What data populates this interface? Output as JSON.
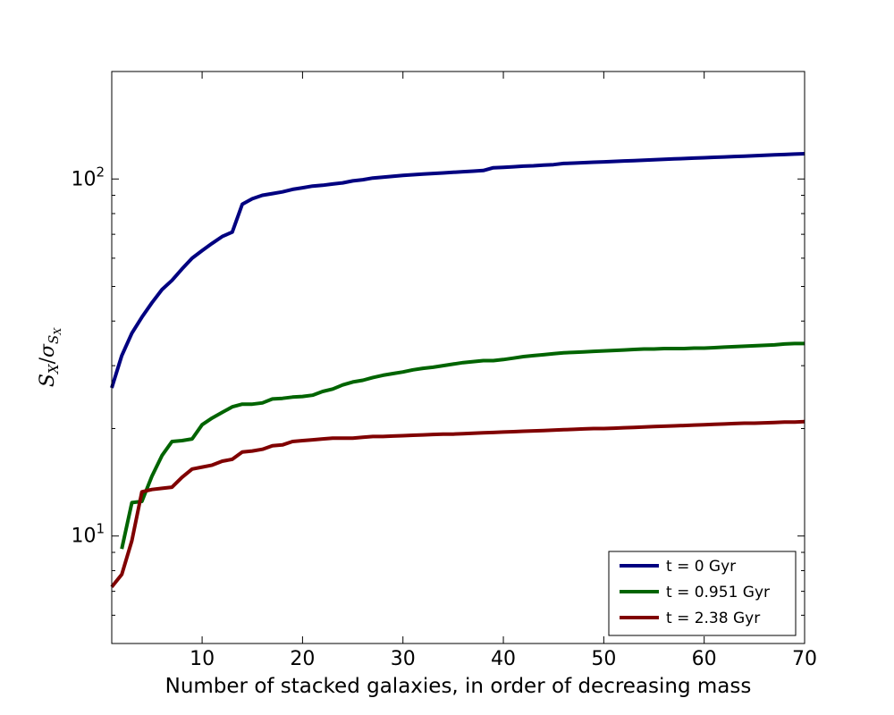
{
  "chart_data": {
    "type": "line",
    "title": "",
    "xlabel": "Number of stacked galaxies, in order of decreasing mass",
    "ylabel": {
      "main": "S",
      "main_sub": "X",
      "sigma_sub": "S",
      "sigma_subsub": "X"
    },
    "xlim": [
      1,
      70
    ],
    "ylim": [
      5,
      200
    ],
    "yscale": "log",
    "xticks": [
      10,
      20,
      30,
      40,
      50,
      60,
      70
    ],
    "yticks_major": [
      {
        "value": 10,
        "base": "10",
        "exp": "1"
      },
      {
        "value": 100,
        "base": "10",
        "exp": "2"
      }
    ],
    "grid": false,
    "legend_position": "lower-right",
    "series": [
      {
        "name": "t = 0 Gyr",
        "color": "#000080",
        "x": [
          1,
          2,
          3,
          4,
          5,
          6,
          7,
          8,
          9,
          10,
          11,
          12,
          13,
          14,
          15,
          16,
          17,
          18,
          19,
          20,
          21,
          22,
          23,
          24,
          25,
          26,
          27,
          28,
          29,
          30,
          31,
          32,
          33,
          34,
          35,
          36,
          37,
          38,
          39,
          40,
          41,
          42,
          43,
          44,
          45,
          46,
          47,
          48,
          49,
          50,
          51,
          52,
          53,
          54,
          55,
          56,
          57,
          58,
          59,
          60,
          61,
          62,
          63,
          64,
          65,
          66,
          67,
          68,
          69,
          70
        ],
        "values": [
          26,
          32,
          37,
          41,
          45,
          49,
          52,
          56,
          60,
          63,
          66,
          69,
          71,
          85,
          88,
          90,
          91,
          92,
          93.5,
          94.5,
          95.5,
          96,
          96.8,
          97.5,
          98.8,
          99.5,
          100.6,
          101.2,
          101.8,
          102.3,
          102.8,
          103.2,
          103.6,
          104,
          104.4,
          104.8,
          105.2,
          105.6,
          107.5,
          107.8,
          108.2,
          108.6,
          108.9,
          109.3,
          109.7,
          110.5,
          110.8,
          111.1,
          111.4,
          111.7,
          112,
          112.3,
          112.6,
          112.9,
          113.2,
          113.5,
          113.8,
          114.1,
          114.4,
          114.7,
          115,
          115.3,
          115.6,
          115.9,
          116.2,
          116.5,
          116.8,
          117.1,
          117.4,
          117.7
        ]
      },
      {
        "name": "t = 0.951 Gyr",
        "color": "#006400",
        "x": [
          2,
          3,
          4,
          5,
          6,
          7,
          8,
          9,
          10,
          11,
          12,
          13,
          14,
          15,
          16,
          17,
          18,
          19,
          20,
          21,
          22,
          23,
          24,
          25,
          26,
          27,
          28,
          29,
          30,
          31,
          32,
          33,
          34,
          35,
          36,
          37,
          38,
          39,
          40,
          41,
          42,
          43,
          44,
          45,
          46,
          47,
          48,
          49,
          50,
          51,
          52,
          53,
          54,
          55,
          56,
          57,
          58,
          59,
          60,
          61,
          62,
          63,
          64,
          65,
          66,
          67,
          68,
          69,
          70
        ],
        "values": [
          9.2,
          12.4,
          12.5,
          14.7,
          16.8,
          18.4,
          18.5,
          18.7,
          20.5,
          21.4,
          22.2,
          23,
          23.4,
          23.4,
          23.6,
          24.2,
          24.3,
          24.5,
          24.6,
          24.8,
          25.4,
          25.8,
          26.5,
          27,
          27.3,
          27.8,
          28.2,
          28.5,
          28.8,
          29.2,
          29.5,
          29.7,
          30,
          30.3,
          30.6,
          30.8,
          31,
          31,
          31.2,
          31.5,
          31.8,
          32,
          32.2,
          32.4,
          32.6,
          32.7,
          32.8,
          32.9,
          33,
          33.1,
          33.2,
          33.3,
          33.4,
          33.4,
          33.5,
          33.5,
          33.5,
          33.6,
          33.6,
          33.7,
          33.8,
          33.9,
          34,
          34.1,
          34.2,
          34.3,
          34.5,
          34.6,
          34.6
        ]
      },
      {
        "name": "t = 2.38 Gyr",
        "color": "#800000",
        "x": [
          1,
          2,
          3,
          4,
          5,
          6,
          7,
          8,
          9,
          10,
          11,
          12,
          13,
          14,
          15,
          16,
          17,
          18,
          19,
          20,
          21,
          22,
          23,
          24,
          25,
          26,
          27,
          28,
          29,
          30,
          31,
          32,
          33,
          34,
          35,
          36,
          37,
          38,
          39,
          40,
          41,
          42,
          43,
          44,
          45,
          46,
          47,
          48,
          49,
          50,
          51,
          52,
          53,
          54,
          55,
          56,
          57,
          58,
          59,
          60,
          61,
          62,
          63,
          64,
          65,
          66,
          67,
          68,
          69,
          70
        ],
        "values": [
          7.2,
          7.8,
          9.7,
          13.3,
          13.5,
          13.6,
          13.7,
          14.6,
          15.4,
          15.6,
          15.8,
          16.2,
          16.4,
          17.2,
          17.3,
          17.5,
          17.9,
          18,
          18.4,
          18.5,
          18.6,
          18.7,
          18.8,
          18.8,
          18.8,
          18.9,
          19,
          19,
          19.05,
          19.1,
          19.15,
          19.2,
          19.25,
          19.3,
          19.3,
          19.35,
          19.4,
          19.45,
          19.5,
          19.55,
          19.6,
          19.65,
          19.7,
          19.75,
          19.8,
          19.85,
          19.9,
          19.95,
          20,
          20,
          20.05,
          20.1,
          20.15,
          20.2,
          20.25,
          20.3,
          20.35,
          20.4,
          20.45,
          20.5,
          20.55,
          20.6,
          20.65,
          20.7,
          20.7,
          20.75,
          20.8,
          20.85,
          20.85,
          20.9
        ]
      }
    ]
  }
}
